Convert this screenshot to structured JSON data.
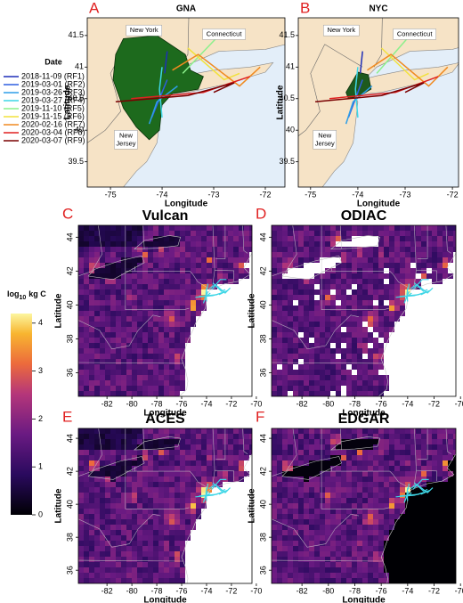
{
  "legend": {
    "title": "Date",
    "entries": [
      {
        "label": "2018-11-09 (RF1)",
        "color": "#1f2fb8"
      },
      {
        "label": "2019-03-01 (RF2)",
        "color": "#2f5fe0"
      },
      {
        "label": "2019-03-26 (RF3)",
        "color": "#2e9ee8"
      },
      {
        "label": "2019-03-27 (RF4)",
        "color": "#3fd6e6"
      },
      {
        "label": "2019-11-10 (RF5)",
        "color": "#8cf08c"
      },
      {
        "label": "2019-11-15 (RF6)",
        "color": "#f2e23c"
      },
      {
        "label": "2020-02-16 (RF7)",
        "color": "#f08a20"
      },
      {
        "label": "2020-03-04 (RF8)",
        "color": "#e02020"
      },
      {
        "label": "2020-03-07 (RF9)",
        "color": "#7a0000"
      }
    ]
  },
  "colorbar": {
    "label": "log",
    "label_subscript": "10",
    "label_unit": "kg C",
    "lim": [
      0,
      4.2
    ],
    "ticks": [
      0,
      1,
      2,
      3,
      4
    ]
  },
  "panels": [
    {
      "letter": "A",
      "title": "GNA",
      "xlabel": "Longitude",
      "ylabel": "Latitude",
      "xlim": [
        -75.45,
        -71.62
      ],
      "ylim": [
        39.1,
        41.78
      ],
      "xticks": [
        -75,
        -74,
        -73,
        -72
      ],
      "yticks": [
        39.5,
        40,
        40.5,
        41,
        41.5
      ],
      "places": {
        "new_york": "New York",
        "connecticut": "Connecticut",
        "new_jersey": [
          "New",
          "Jersey"
        ]
      }
    },
    {
      "letter": "B",
      "title": "NYC",
      "xlabel": "Longitude",
      "ylabel": "Latitude",
      "xlim": [
        -75.26,
        -71.87
      ],
      "ylim": [
        39.1,
        41.78
      ],
      "xticks": [
        -75,
        -74,
        -73,
        -72
      ],
      "yticks": [
        39.5,
        40,
        40.5,
        41,
        41.5
      ],
      "places": {
        "new_york": "New York",
        "connecticut": "Connecticut",
        "new_jersey": [
          "New",
          "Jersey"
        ]
      }
    },
    {
      "letter": "C",
      "title": "Vulcan",
      "xlabel": "Longitude",
      "ylabel": "Latitude",
      "xlim": [
        -84.3,
        -70.35
      ],
      "ylim": [
        34.6,
        44.7
      ],
      "xticks": [
        -82,
        -80,
        -78,
        -76,
        -74,
        -72,
        -70
      ],
      "yticks": [
        36,
        38,
        40,
        42,
        44
      ]
    },
    {
      "letter": "D",
      "title": "ODIAC",
      "xlabel": "Longitude",
      "ylabel": "Latitude",
      "xlim": [
        -84.3,
        -70.35
      ],
      "ylim": [
        34.6,
        44.7
      ],
      "xticks": [
        -82,
        -80,
        -78,
        -76,
        -74,
        -72,
        -70
      ],
      "yticks": [
        36,
        38,
        40,
        42,
        44
      ]
    },
    {
      "letter": "E",
      "title": "ACES",
      "xlabel": "Longitude",
      "ylabel": "Latitude",
      "xlim": [
        -84.3,
        -70.35
      ],
      "ylim": [
        35.2,
        44.6
      ],
      "xticks": [
        -82,
        -80,
        -78,
        -76,
        -74,
        -72,
        -70
      ],
      "yticks": [
        36,
        38,
        40,
        42,
        44
      ]
    },
    {
      "letter": "F",
      "title": "EDGAR",
      "xlabel": "Longitude",
      "ylabel": "Latitude",
      "xlim": [
        -84.3,
        -70.35
      ],
      "ylim": [
        35.2,
        44.6
      ],
      "xticks": [
        -82,
        -80,
        -78,
        -76,
        -74,
        -72,
        -70
      ],
      "yticks": [
        36,
        38,
        40,
        42,
        44
      ]
    }
  ]
}
